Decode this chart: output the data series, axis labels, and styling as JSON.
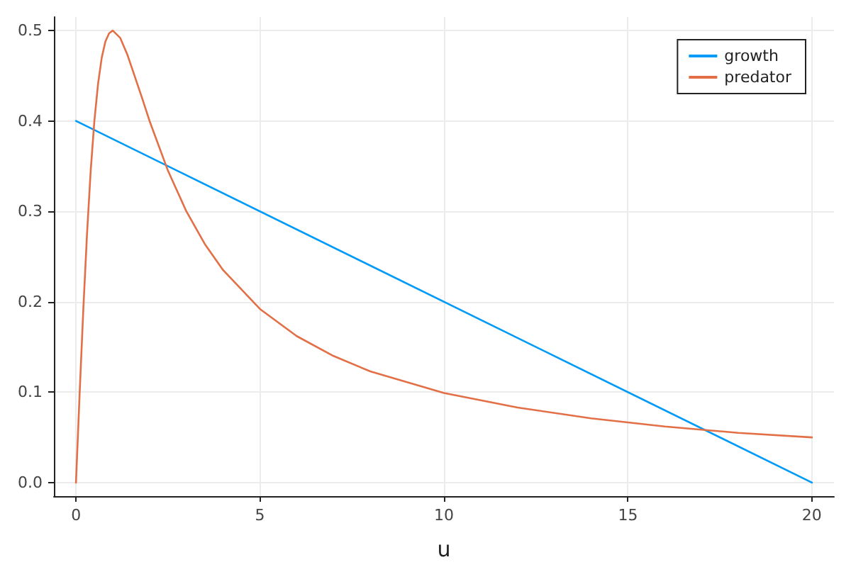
{
  "chart_data": {
    "type": "line",
    "xlabel": "u",
    "series": [
      {
        "name": "growth",
        "color": "#009af9",
        "x": [
          0,
          20
        ],
        "values": [
          0.4,
          0
        ]
      },
      {
        "name": "predator",
        "color": "#e26f46",
        "x": [
          0,
          0.1,
          0.2,
          0.3,
          0.4,
          0.5,
          0.6,
          0.7,
          0.8,
          0.9,
          1,
          1.2,
          1.4,
          1.6,
          1.8,
          2,
          2.5,
          3,
          3.5,
          4,
          5,
          6,
          7,
          8,
          10,
          12,
          14,
          16,
          18,
          20
        ],
        "values": [
          0,
          0.099,
          0.192,
          0.275,
          0.345,
          0.4,
          0.441,
          0.47,
          0.488,
          0.497,
          0.5,
          0.492,
          0.473,
          0.449,
          0.425,
          0.4,
          0.345,
          0.3,
          0.264,
          0.235,
          0.192,
          0.162,
          0.14,
          0.123,
          0.099,
          0.083,
          0.071,
          0.062,
          0.055,
          0.05
        ]
      }
    ],
    "xlim": [
      -0.6,
      20.6
    ],
    "xticks": [
      0,
      5,
      10,
      15,
      20
    ],
    "ylim": [
      -0.015,
      0.515
    ],
    "yticks": [
      {
        "value": 0,
        "label": "0.0"
      },
      0.1,
      0.2,
      0.3,
      0.4,
      0.5
    ],
    "grid": true,
    "legend": "top right",
    "marker": "none",
    "line_style": "solid"
  }
}
